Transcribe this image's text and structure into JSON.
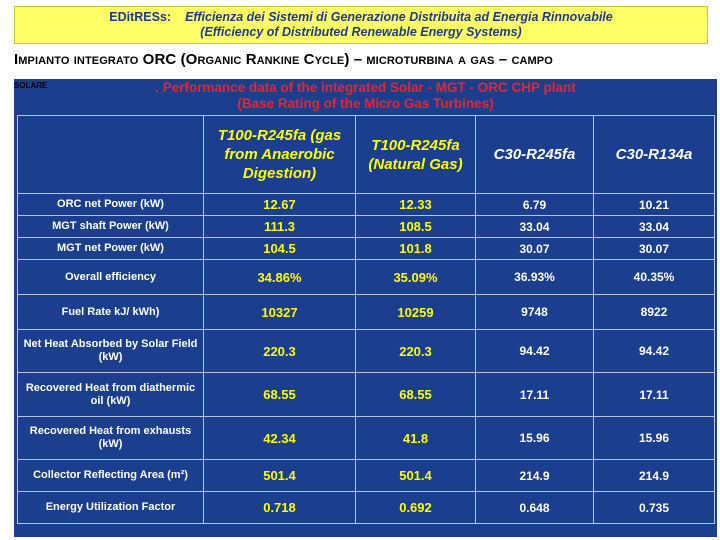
{
  "banner": {
    "brand": "EDitRESs:",
    "line1": "Efficienza dei Sistemi di Generazione Distribuita ad Energia Rinnovabile",
    "line2": "(Efficiency of Distributed Renewable Energy Systems)"
  },
  "slide_title": {
    "line1": "Impianto integrato ORC (Organic Rankine Cycle) – microturbina a gas – campo",
    "line2": "solare"
  },
  "table_caption": {
    "prefix": ". ",
    "line1": "Performance data of the integrated Solar - MGT - ORC CHP plant",
    "line2": "(Base Rating of the Micro Gas Turbines)"
  },
  "colors": {
    "banner_bg": "#ffff66",
    "banner_text": "#1f3a8c",
    "table_bg": "#1b3e8f",
    "highlight": "#ffff00",
    "caption": "#e8252a"
  },
  "table": {
    "columns": [
      "T100-R245fa (gas from Anaerobic Digestion)",
      "T100-R245fa (Natural Gas)",
      "C30-R245fa",
      "C30-R134a"
    ],
    "rows": [
      {
        "label": "ORC net Power  (kW)",
        "values": [
          "12.67",
          "12.33",
          "6.79",
          "10.21"
        ]
      },
      {
        "label": "MGT shaft Power (kW)",
        "values": [
          "111.3",
          "108.5",
          "33.04",
          "33.04"
        ]
      },
      {
        "label": "MGT net Power (kW)",
        "values": [
          "104.5",
          "101.8",
          "30.07",
          "30.07"
        ]
      },
      {
        "label": "Overall efficiency",
        "values": [
          "34.86%",
          "35.09%",
          "36.93%",
          "40.35%"
        ]
      },
      {
        "label": "Fuel Rate kJ/ kWh)",
        "values": [
          "10327",
          "10259",
          "9748",
          "8922"
        ]
      },
      {
        "label": "Net Heat Absorbed by Solar Field  (kW)",
        "values": [
          "220.3",
          "220.3",
          "94.42",
          "94.42"
        ]
      },
      {
        "label": "Recovered Heat from diathermic oil  (kW)",
        "values": [
          "68.55",
          "68.55",
          "17.11",
          "17.11"
        ]
      },
      {
        "label": "Recovered Heat from exhausts  (kW)",
        "values": [
          "42.34",
          "41.8",
          "15.96",
          "15.96"
        ]
      },
      {
        "label": "Collector Reflecting Area (m²)",
        "values": [
          "501.4",
          "501.4",
          "214.9",
          "214.9"
        ]
      },
      {
        "label": "Energy Utilization Factor",
        "values": [
          "0.718",
          "0.692",
          "0.648",
          "0.735"
        ]
      }
    ]
  }
}
